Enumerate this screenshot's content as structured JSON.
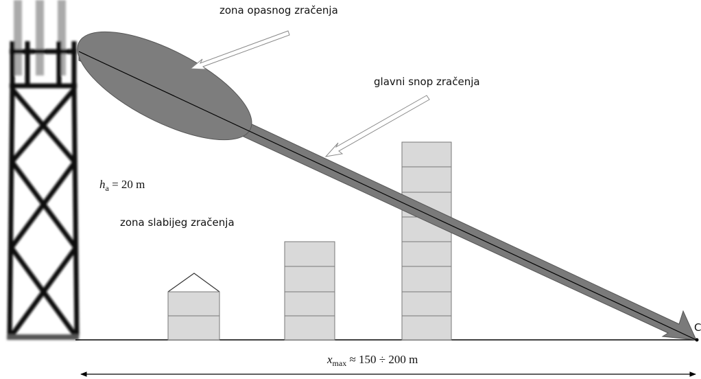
{
  "labels": {
    "danger_zone": "zona opasnog zračenja",
    "main_beam": "glavni snop zračenja",
    "weak_zone": "zona slabijeg zračenja",
    "height": {
      "symbol": "h",
      "subscript": "a",
      "rest": " = 20 m"
    },
    "distance": {
      "symbol": "x",
      "subscript": "max",
      "rest": " ≈ 150 ÷ 200 m"
    },
    "point": "C"
  }
}
